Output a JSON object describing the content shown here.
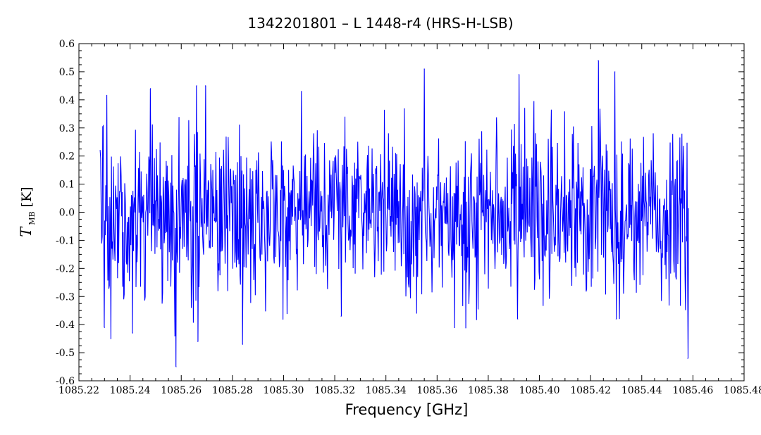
{
  "chart_data": {
    "type": "line",
    "title": "1342201801 – L 1448-r4 (HRS-H-LSB)",
    "xlabel": "Frequency [GHz]",
    "ylabel": {
      "symbol": "T",
      "subscript": "MB",
      "unit": "[K]"
    },
    "xlim": [
      1085.22,
      1085.48
    ],
    "ylim": [
      -0.6,
      0.6
    ],
    "x_ticks": [
      "1085.22",
      "1085.24",
      "1085.26",
      "1085.28",
      "1085.30",
      "1085.32",
      "1085.34",
      "1085.36",
      "1085.38",
      "1085.40",
      "1085.42",
      "1085.44",
      "1085.46",
      "1085.48"
    ],
    "y_ticks": [
      "0.6",
      "0.5",
      "0.4",
      "0.3",
      "0.2",
      "0.1",
      "0.0",
      "-0.1",
      "-0.2",
      "-0.3",
      "-0.4",
      "-0.5",
      "-0.6"
    ],
    "grid": false,
    "series": [
      {
        "color": "#0000ff",
        "x_start": 1085.2283,
        "x_end": 1085.4583,
        "noise_rms_K": 0.15,
        "notable_points": [
          {
            "x": 1085.2283,
            "y": 0.22
          },
          {
            "x": 1085.23,
            "y": -0.41
          },
          {
            "x": 1085.2325,
            "y": -0.45
          },
          {
            "x": 1085.241,
            "y": -0.43
          },
          {
            "x": 1085.248,
            "y": 0.44
          },
          {
            "x": 1085.2575,
            "y": -0.44
          },
          {
            "x": 1085.258,
            "y": -0.55
          },
          {
            "x": 1085.266,
            "y": 0.45
          },
          {
            "x": 1085.2665,
            "y": -0.46
          },
          {
            "x": 1085.2695,
            "y": 0.45
          },
          {
            "x": 1085.284,
            "y": -0.47
          },
          {
            "x": 1085.307,
            "y": 0.43
          },
          {
            "x": 1085.3225,
            "y": -0.37
          },
          {
            "x": 1085.355,
            "y": 0.51
          },
          {
            "x": 1085.3915,
            "y": -0.38
          },
          {
            "x": 1085.392,
            "y": 0.49
          },
          {
            "x": 1085.423,
            "y": 0.54
          },
          {
            "x": 1085.4295,
            "y": 0.5
          },
          {
            "x": 1085.43,
            "y": -0.38
          },
          {
            "x": 1085.458,
            "y": -0.52
          }
        ]
      }
    ]
  }
}
